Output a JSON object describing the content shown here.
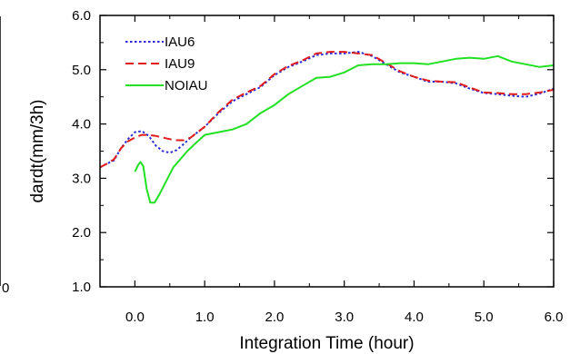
{
  "chart_data": {
    "type": "line",
    "title": "",
    "xlabel": "Integration Time (hour)",
    "ylabel": "dardt(mm/3h)",
    "xlim": [
      -0.5,
      6.0
    ],
    "ylim": [
      1.0,
      6.0
    ],
    "xticks": [
      0.0,
      1.0,
      2.0,
      3.0,
      4.0,
      5.0,
      6.0
    ],
    "xtick_labels": [
      "0.0",
      "1.0",
      "2.0",
      "3.0",
      "4.0",
      "5.0",
      "6.0"
    ],
    "yticks": [
      1.0,
      2.0,
      3.0,
      4.0,
      5.0,
      6.0
    ],
    "ytick_labels": [
      "1.0",
      "2.0",
      "3.0",
      "4.0",
      "5.0",
      "6.0"
    ],
    "grid": false,
    "legend_position": "top-left",
    "left_fragment_label": "0",
    "series": [
      {
        "name": "IAU6",
        "color": "#2b2bd9",
        "dash": "dotted",
        "x": [
          -0.5,
          -0.4,
          -0.3,
          -0.2,
          -0.1,
          0.0,
          0.1,
          0.2,
          0.3,
          0.4,
          0.5,
          0.6,
          0.7,
          0.8,
          1.0,
          1.2,
          1.4,
          1.6,
          1.8,
          2.0,
          2.2,
          2.4,
          2.6,
          2.8,
          3.0,
          3.2,
          3.4,
          3.6,
          3.8,
          4.0,
          4.2,
          4.4,
          4.6,
          4.8,
          5.0,
          5.2,
          5.4,
          5.6,
          5.8,
          6.0
        ],
        "y": [
          3.2,
          3.27,
          3.33,
          3.55,
          3.72,
          3.85,
          3.87,
          3.78,
          3.6,
          3.5,
          3.47,
          3.52,
          3.63,
          3.75,
          3.95,
          4.2,
          4.42,
          4.55,
          4.68,
          4.9,
          5.05,
          5.15,
          5.27,
          5.3,
          5.3,
          5.33,
          5.25,
          5.1,
          4.95,
          4.87,
          4.78,
          4.78,
          4.75,
          4.65,
          4.57,
          4.55,
          4.52,
          4.5,
          4.56,
          4.65
        ]
      },
      {
        "name": "IAU9",
        "color": "#e01b1b",
        "dash": "dashed",
        "x": [
          -0.5,
          -0.4,
          -0.3,
          -0.2,
          -0.1,
          0.0,
          0.1,
          0.2,
          0.3,
          0.4,
          0.5,
          0.6,
          0.7,
          0.8,
          1.0,
          1.2,
          1.4,
          1.6,
          1.8,
          2.0,
          2.2,
          2.4,
          2.6,
          2.8,
          3.0,
          3.2,
          3.4,
          3.6,
          3.8,
          4.0,
          4.2,
          4.4,
          4.6,
          4.8,
          5.0,
          5.2,
          5.4,
          5.6,
          5.8,
          6.0
        ],
        "y": [
          3.2,
          3.27,
          3.35,
          3.55,
          3.68,
          3.75,
          3.8,
          3.8,
          3.78,
          3.75,
          3.72,
          3.7,
          3.7,
          3.75,
          3.95,
          4.22,
          4.45,
          4.58,
          4.7,
          4.92,
          5.07,
          5.17,
          5.3,
          5.33,
          5.33,
          5.3,
          5.27,
          5.12,
          4.97,
          4.87,
          4.8,
          4.78,
          4.77,
          4.67,
          4.58,
          4.57,
          4.55,
          4.55,
          4.58,
          4.63
        ]
      },
      {
        "name": "NOIAU",
        "color": "#22e022",
        "dash": "solid",
        "x": [
          0.0,
          0.05,
          0.08,
          0.12,
          0.17,
          0.22,
          0.28,
          0.35,
          0.45,
          0.55,
          0.65,
          0.75,
          0.85,
          1.0,
          1.2,
          1.4,
          1.6,
          1.8,
          2.0,
          2.2,
          2.4,
          2.6,
          2.8,
          3.0,
          3.2,
          3.4,
          3.6,
          3.8,
          4.0,
          4.2,
          4.4,
          4.6,
          4.8,
          5.0,
          5.2,
          5.4,
          5.6,
          5.8,
          6.0
        ],
        "y": [
          3.12,
          3.25,
          3.3,
          3.22,
          2.8,
          2.55,
          2.55,
          2.7,
          2.95,
          3.2,
          3.35,
          3.5,
          3.62,
          3.8,
          3.85,
          3.9,
          4.0,
          4.2,
          4.35,
          4.55,
          4.7,
          4.85,
          4.87,
          4.95,
          5.08,
          5.1,
          5.1,
          5.12,
          5.12,
          5.1,
          5.15,
          5.2,
          5.22,
          5.2,
          5.25,
          5.15,
          5.1,
          5.05,
          5.08
        ]
      }
    ]
  }
}
